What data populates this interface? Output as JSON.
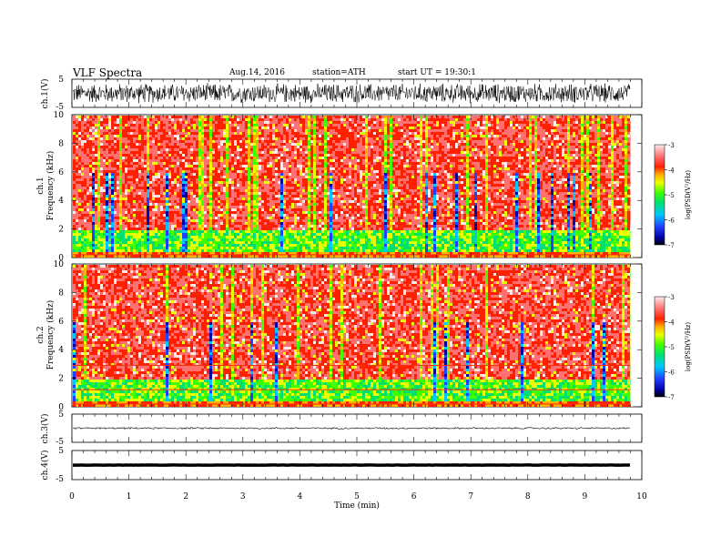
{
  "header": {
    "title": "VLF Spectra",
    "date": "Aug.14, 2016",
    "station": "station=ATH",
    "start": "start UT =  19:30:1"
  },
  "chart_data": [
    {
      "id": "ch1-waveform",
      "type": "line",
      "ylabel": "ch.1(V)",
      "ylim": [
        -5,
        5
      ],
      "y_ticks": [
        "5",
        "-5"
      ],
      "xlim": [
        0,
        10
      ],
      "description_level": "noisy broadband signal, amplitude approx ±4 V"
    },
    {
      "id": "ch1-spectrogram",
      "type": "heatmap",
      "ylabel_top": "ch.1",
      "ylabel": "Frequency (kHz)",
      "ylim": [
        0,
        10
      ],
      "y_ticks": [
        "0",
        "2",
        "4",
        "6",
        "8",
        "10"
      ],
      "xlim": [
        0,
        10
      ],
      "data_end_min": 9.8,
      "colorbar": {
        "label": "log(PSD(V²/Hz)",
        "range": [
          -7,
          -3
        ],
        "ticks": [
          "-3",
          "-4",
          "-5",
          "-6",
          "-7"
        ]
      }
    },
    {
      "id": "ch2-spectrogram",
      "type": "heatmap",
      "ylabel_top": "ch.2",
      "ylabel": "Frequency (kHz)",
      "ylim": [
        0,
        10
      ],
      "y_ticks": [
        "0",
        "2",
        "4",
        "6",
        "8",
        "10"
      ],
      "xlim": [
        0,
        10
      ],
      "data_end_min": 9.8,
      "colorbar": {
        "label": "log(PSD(V²/Hz)",
        "range": [
          -7,
          -3
        ],
        "ticks": [
          "-3",
          "-4",
          "-5",
          "-6",
          "-7"
        ]
      }
    },
    {
      "id": "ch3-waveform",
      "type": "line",
      "ylabel": "ch.3(V)",
      "ylim": [
        -5,
        5
      ],
      "y_ticks": [
        "5",
        "-5"
      ],
      "xlim": [
        0,
        10
      ],
      "level": 0
    },
    {
      "id": "ch4-waveform",
      "type": "line",
      "ylabel": "ch.4(V)",
      "ylim": [
        -5,
        5
      ],
      "y_ticks": [
        "5",
        "-5"
      ],
      "xlim": [
        0,
        10
      ],
      "level": 0
    }
  ],
  "x_axis": {
    "label": "Time (min)",
    "ticks": [
      "0",
      "1",
      "2",
      "3",
      "4",
      "5",
      "6",
      "7",
      "8",
      "9",
      "10"
    ]
  }
}
